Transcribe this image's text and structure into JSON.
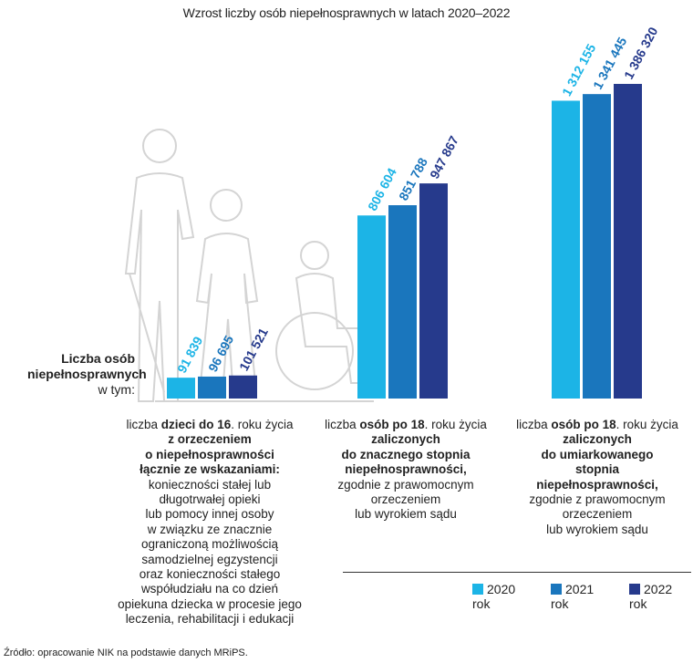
{
  "chart_data": {
    "type": "bar",
    "title": "Wzrost liczby osób niepełnosprawnych w latach 2020–2022",
    "ylabel_lines": [
      "Liczba osób",
      "niepełnosprawnych",
      "w tym:"
    ],
    "categories": [
      {
        "lines": [
          [
            {
              "t": "liczba ",
              "b": false
            },
            {
              "t": "dzieci do 16",
              "b": true
            },
            {
              "t": ". roku życia",
              "b": false
            }
          ],
          [
            {
              "t": "z orzeczeniem",
              "b": true
            }
          ],
          [
            {
              "t": "o niepełnosprawności",
              "b": true
            }
          ],
          [
            {
              "t": "łącznie ze wskazaniami:",
              "b": true
            }
          ],
          [
            {
              "t": "konieczności stałej lub",
              "b": false
            }
          ],
          [
            {
              "t": "długotrwałej opieki",
              "b": false
            }
          ],
          [
            {
              "t": "lub pomocy innej osoby",
              "b": false
            }
          ],
          [
            {
              "t": "w związku ze znacznie",
              "b": false
            }
          ],
          [
            {
              "t": "ograniczoną możliwością",
              "b": false
            }
          ],
          [
            {
              "t": "samodzielnej egzystencji",
              "b": false
            }
          ],
          [
            {
              "t": "oraz konieczności stałego",
              "b": false
            }
          ],
          [
            {
              "t": "współudziału na co dzień",
              "b": false
            }
          ],
          [
            {
              "t": "opiekuna dziecka w procesie jego",
              "b": false
            }
          ],
          [
            {
              "t": "leczenia, rehabilitacji i edukacji",
              "b": false
            }
          ]
        ]
      },
      {
        "lines": [
          [
            {
              "t": "liczba ",
              "b": false
            },
            {
              "t": "osób po 18",
              "b": true
            },
            {
              "t": ". roku życia",
              "b": false
            }
          ],
          [
            {
              "t": "zaliczonych",
              "b": true
            }
          ],
          [
            {
              "t": "do znacznego stopnia",
              "b": true
            }
          ],
          [
            {
              "t": "niepełnosprawności,",
              "b": true
            }
          ],
          [
            {
              "t": "zgodnie z prawomocnym",
              "b": false
            }
          ],
          [
            {
              "t": "orzeczeniem",
              "b": false
            }
          ],
          [
            {
              "t": "lub wyrokiem sądu",
              "b": false
            }
          ]
        ]
      },
      {
        "lines": [
          [
            {
              "t": "liczba ",
              "b": false
            },
            {
              "t": "osób po 18",
              "b": true
            },
            {
              "t": ". roku życia",
              "b": false
            }
          ],
          [
            {
              "t": "zaliczonych",
              "b": true
            }
          ],
          [
            {
              "t": "do umiarkowanego",
              "b": true
            }
          ],
          [
            {
              "t": "stopnia",
              "b": true
            }
          ],
          [
            {
              "t": "niepełnosprawności,",
              "b": true
            }
          ],
          [
            {
              "t": "zgodnie z prawomocnym",
              "b": false
            }
          ],
          [
            {
              "t": "orzeczeniem",
              "b": false
            }
          ],
          [
            {
              "t": "lub wyrokiem sądu",
              "b": false
            }
          ]
        ]
      }
    ],
    "series": [
      {
        "name": "2020 rok",
        "color": "#1cb4e6",
        "values": [
          91839,
          806604,
          1312155
        ],
        "labels": [
          "91 839",
          "806 604",
          "1 312 155"
        ]
      },
      {
        "name": "2021 rok",
        "color": "#1a76bd",
        "values": [
          96695,
          851788,
          1341445
        ],
        "labels": [
          "96 695",
          "851 788",
          "1 341 445"
        ]
      },
      {
        "name": "2022 rok",
        "color": "#263a8c",
        "values": [
          101521,
          947867,
          1386320
        ],
        "labels": [
          "101 521",
          "947 867",
          "1 386 320"
        ]
      }
    ],
    "ylim": [
      0,
      1386320
    ],
    "grid": false,
    "legend_placement": "bottom-right"
  },
  "source": "Źródło: opracowanie NIK na podstawie danych MRiPS."
}
